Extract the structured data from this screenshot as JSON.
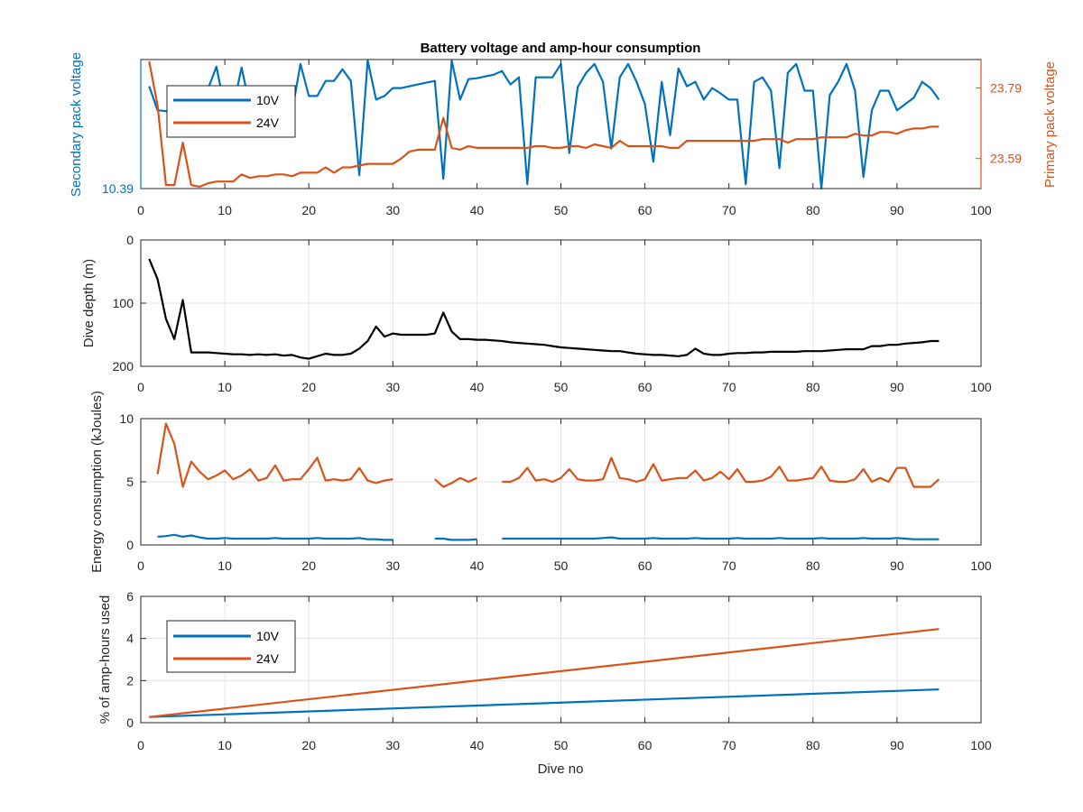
{
  "colors": {
    "v10": "#0072BD",
    "v24": "#D95319",
    "depth": "#000000",
    "axis": "#262626",
    "grid": "#e3e3e3"
  },
  "chart_data": [
    {
      "type": "line",
      "title": "Battery voltage and amp-hour consumption",
      "xlabel": "",
      "ylabel_left": "Secondary pack voltage",
      "ylabel_right": "Primary pack voltage",
      "xlim": [
        0,
        100
      ],
      "xticks": [
        "0",
        "10",
        "20",
        "30",
        "40",
        "50",
        "60",
        "70",
        "80",
        "90",
        "100"
      ],
      "yticks_left": [
        "10.39"
      ],
      "yticks_right": [
        "23.79",
        "23.59"
      ],
      "grid": false,
      "legend": {
        "placement": "top-left",
        "entries": [
          "10V",
          "24V"
        ]
      },
      "series": [
        {
          "name": "10V",
          "axis": "left",
          "x": [
            1,
            2,
            3,
            4,
            5,
            6,
            7,
            8,
            9,
            10,
            11,
            12,
            13,
            14,
            15,
            16,
            17,
            18,
            19,
            20,
            21,
            22,
            23,
            24,
            25,
            26,
            27,
            28,
            29,
            30,
            31,
            32,
            33,
            34,
            35,
            36,
            37,
            38,
            39,
            40,
            41,
            42,
            43,
            44,
            45,
            46,
            47,
            48,
            49,
            50,
            51,
            52,
            53,
            54,
            55,
            56,
            57,
            58,
            59,
            60,
            61,
            62,
            63,
            64,
            65,
            66,
            67,
            68,
            69,
            70,
            71,
            72,
            73,
            74,
            75,
            76,
            77,
            78,
            79,
            80,
            81,
            82,
            83,
            84,
            85,
            86,
            87,
            88,
            89,
            90,
            91,
            92,
            93,
            94,
            95
          ],
          "y": [
            10.505,
            10.478,
            10.477,
            10.472,
            10.488,
            10.478,
            10.472,
            10.502,
            10.527,
            10.48,
            10.482,
            10.526,
            10.482,
            10.482,
            10.479,
            10.485,
            10.487,
            10.476,
            10.53,
            10.494,
            10.494,
            10.511,
            10.511,
            10.524,
            10.511,
            10.405,
            10.534,
            10.49,
            10.494,
            10.503,
            10.503,
            10.505,
            10.507,
            10.509,
            10.511,
            10.401,
            10.534,
            10.49,
            10.513,
            10.514,
            10.516,
            10.518,
            10.522,
            10.507,
            10.515,
            10.395,
            10.515,
            10.515,
            10.515,
            10.53,
            10.43,
            10.504,
            10.52,
            10.53,
            10.51,
            10.435,
            10.515,
            10.53,
            10.51,
            10.485,
            10.42,
            10.51,
            10.45,
            10.525,
            10.505,
            10.51,
            10.49,
            10.503,
            10.497,
            10.49,
            10.49,
            10.395,
            10.51,
            10.515,
            10.5,
            10.413,
            10.52,
            10.53,
            10.5,
            10.5,
            10.39,
            10.495,
            10.51,
            10.53,
            10.5,
            10.403,
            10.478,
            10.5,
            10.5,
            10.478,
            10.485,
            10.492,
            10.51,
            10.503,
            10.49
          ]
        },
        {
          "name": "24V",
          "axis": "right",
          "x": [
            1,
            2,
            3,
            4,
            5,
            6,
            7,
            8,
            9,
            10,
            11,
            12,
            13,
            14,
            15,
            16,
            17,
            18,
            19,
            20,
            21,
            22,
            23,
            24,
            25,
            26,
            27,
            28,
            29,
            30,
            31,
            32,
            33,
            34,
            35,
            36,
            37,
            38,
            39,
            40,
            41,
            42,
            43,
            44,
            45,
            46,
            47,
            48,
            49,
            50,
            51,
            52,
            53,
            54,
            55,
            56,
            57,
            58,
            59,
            60,
            61,
            62,
            63,
            64,
            65,
            66,
            67,
            68,
            69,
            70,
            71,
            72,
            73,
            74,
            75,
            76,
            77,
            78,
            79,
            80,
            81,
            82,
            83,
            84,
            85,
            86,
            87,
            88,
            89,
            90,
            91,
            92,
            93,
            94,
            95
          ],
          "y": [
            23.865,
            23.74,
            23.515,
            23.515,
            23.635,
            23.515,
            23.51,
            23.52,
            23.525,
            23.525,
            23.525,
            23.545,
            23.535,
            23.54,
            23.54,
            23.545,
            23.545,
            23.54,
            23.55,
            23.55,
            23.55,
            23.565,
            23.55,
            23.565,
            23.565,
            23.57,
            23.575,
            23.575,
            23.575,
            23.575,
            23.59,
            23.61,
            23.615,
            23.615,
            23.615,
            23.705,
            23.62,
            23.615,
            23.625,
            23.62,
            23.62,
            23.62,
            23.62,
            23.62,
            23.62,
            23.62,
            23.625,
            23.625,
            23.62,
            23.62,
            23.625,
            23.625,
            23.62,
            23.63,
            23.625,
            23.62,
            23.64,
            23.625,
            23.625,
            23.625,
            23.625,
            23.625,
            23.62,
            23.62,
            23.64,
            23.64,
            23.64,
            23.64,
            23.64,
            23.64,
            23.64,
            23.64,
            23.64,
            23.645,
            23.645,
            23.645,
            23.635,
            23.645,
            23.645,
            23.645,
            23.65,
            23.65,
            23.65,
            23.65,
            23.66,
            23.655,
            23.655,
            23.665,
            23.665,
            23.66,
            23.67,
            23.675,
            23.675,
            23.68,
            23.68
          ]
        }
      ]
    },
    {
      "type": "line",
      "title": "",
      "xlabel": "",
      "ylabel": "Dive depth (m)",
      "xlim": [
        0,
        100
      ],
      "ylim": [
        0,
        200
      ],
      "y_reversed": true,
      "xticks": [
        "0",
        "10",
        "20",
        "30",
        "40",
        "50",
        "60",
        "70",
        "80",
        "90",
        "100"
      ],
      "yticks": [
        "0",
        "100",
        "200"
      ],
      "grid": true,
      "series": [
        {
          "axis": "left",
          "x": [
            1,
            2,
            3,
            4,
            5,
            6,
            7,
            8,
            9,
            10,
            11,
            12,
            13,
            14,
            15,
            16,
            17,
            18,
            19,
            20,
            21,
            22,
            23,
            24,
            25,
            26,
            27,
            28,
            29,
            30,
            31,
            32,
            33,
            34,
            35,
            36,
            37,
            38,
            39,
            40,
            41,
            42,
            43,
            44,
            45,
            46,
            47,
            48,
            49,
            50,
            51,
            52,
            53,
            54,
            55,
            56,
            57,
            58,
            59,
            60,
            61,
            62,
            63,
            64,
            65,
            66,
            67,
            68,
            69,
            70,
            71,
            72,
            73,
            74,
            75,
            76,
            77,
            78,
            79,
            80,
            81,
            82,
            83,
            84,
            85,
            86,
            87,
            88,
            89,
            90,
            91,
            92,
            93,
            94,
            95
          ],
          "y": [
            30,
            62,
            125,
            157,
            95,
            178,
            178,
            178,
            179,
            180,
            181,
            181,
            182,
            181,
            182,
            181,
            183,
            182,
            186,
            188,
            184,
            180,
            182,
            182,
            180,
            172,
            160,
            137,
            153,
            148,
            150,
            150,
            150,
            150,
            148,
            115,
            145,
            157,
            157,
            158,
            158,
            159,
            160,
            162,
            163,
            164,
            165,
            166,
            168,
            170,
            171,
            172,
            173,
            174,
            175,
            176,
            176,
            178,
            180,
            181,
            182,
            182,
            183,
            184,
            182,
            172,
            180,
            182,
            182,
            180,
            179,
            179,
            178,
            178,
            177,
            177,
            177,
            177,
            176,
            176,
            176,
            175,
            174,
            173,
            173,
            173,
            168,
            168,
            166,
            166,
            164,
            163,
            162,
            160,
            160
          ]
        }
      ]
    },
    {
      "type": "line",
      "title": "",
      "xlabel": "",
      "ylabel": "Energy consumption (kJoules)",
      "xlim": [
        0,
        100
      ],
      "ylim": [
        0,
        10
      ],
      "xticks": [
        "0",
        "10",
        "20",
        "30",
        "40",
        "50",
        "60",
        "70",
        "80",
        "90",
        "100"
      ],
      "yticks": [
        "0",
        "5",
        "10"
      ],
      "grid": true,
      "series": [
        {
          "name": "24V",
          "axis": "left",
          "x": [
            2,
            3,
            4,
            5,
            6,
            7,
            8,
            9,
            10,
            11,
            12,
            13,
            14,
            15,
            16,
            17,
            18,
            19,
            20,
            21,
            22,
            23,
            24,
            25,
            26,
            27,
            28,
            29,
            30,
            null,
            35,
            36,
            37,
            38,
            39,
            40,
            null,
            43,
            44,
            45,
            46,
            47,
            48,
            49,
            50,
            51,
            52,
            53,
            54,
            55,
            56,
            57,
            58,
            59,
            60,
            61,
            62,
            63,
            64,
            65,
            66,
            67,
            68,
            69,
            70,
            71,
            72,
            73,
            74,
            75,
            76,
            77,
            78,
            79,
            80,
            81,
            82,
            83,
            84,
            85,
            86,
            87,
            88,
            89,
            90,
            91,
            92,
            93,
            94,
            95
          ],
          "y": [
            5.6,
            9.6,
            8.0,
            4.6,
            6.6,
            5.8,
            5.2,
            5.5,
            5.9,
            5.2,
            5.5,
            6.0,
            5.1,
            5.3,
            6.3,
            5.1,
            5.2,
            5.2,
            6.0,
            6.9,
            5.1,
            5.2,
            5.1,
            5.2,
            6.1,
            5.1,
            4.9,
            5.1,
            5.2,
            null,
            5.2,
            4.6,
            4.9,
            5.3,
            5.0,
            5.3,
            null,
            5.0,
            5.0,
            5.3,
            6.1,
            5.1,
            5.2,
            5.0,
            5.3,
            6.0,
            5.2,
            5.1,
            5.1,
            5.2,
            6.9,
            5.3,
            5.2,
            5.0,
            5.2,
            6.4,
            5.1,
            5.2,
            5.3,
            5.3,
            5.9,
            5.1,
            5.3,
            5.8,
            5.2,
            6.0,
            5.0,
            5.0,
            5.1,
            5.4,
            6.2,
            5.1,
            5.1,
            5.2,
            5.3,
            6.2,
            5.1,
            5.0,
            5.0,
            5.2,
            6.0,
            5.0,
            5.3,
            5.0,
            6.1,
            6.1,
            4.6,
            4.6,
            4.6,
            5.2
          ]
        },
        {
          "name": "10V",
          "axis": "left",
          "x": [
            2,
            3,
            4,
            5,
            6,
            7,
            8,
            9,
            10,
            11,
            12,
            13,
            14,
            15,
            16,
            17,
            18,
            19,
            20,
            21,
            22,
            23,
            24,
            25,
            26,
            27,
            28,
            29,
            30,
            null,
            35,
            36,
            37,
            38,
            39,
            40,
            null,
            43,
            44,
            45,
            46,
            47,
            48,
            49,
            50,
            51,
            52,
            53,
            54,
            55,
            56,
            57,
            58,
            59,
            60,
            61,
            62,
            63,
            64,
            65,
            66,
            67,
            68,
            69,
            70,
            71,
            72,
            73,
            74,
            75,
            76,
            77,
            78,
            79,
            80,
            81,
            82,
            83,
            84,
            85,
            86,
            87,
            88,
            89,
            90,
            91,
            92,
            93,
            94,
            95
          ],
          "y": [
            0.65,
            0.7,
            0.8,
            0.65,
            0.75,
            0.6,
            0.5,
            0.5,
            0.55,
            0.5,
            0.5,
            0.5,
            0.5,
            0.5,
            0.55,
            0.5,
            0.5,
            0.5,
            0.5,
            0.55,
            0.5,
            0.5,
            0.5,
            0.5,
            0.55,
            0.45,
            0.45,
            0.4,
            0.4,
            null,
            0.5,
            0.5,
            0.4,
            0.4,
            0.4,
            0.45,
            null,
            0.5,
            0.5,
            0.5,
            0.5,
            0.5,
            0.5,
            0.5,
            0.5,
            0.5,
            0.5,
            0.5,
            0.5,
            0.55,
            0.6,
            0.5,
            0.5,
            0.5,
            0.5,
            0.55,
            0.5,
            0.5,
            0.5,
            0.5,
            0.55,
            0.5,
            0.5,
            0.5,
            0.5,
            0.55,
            0.5,
            0.5,
            0.5,
            0.5,
            0.55,
            0.5,
            0.5,
            0.5,
            0.5,
            0.55,
            0.5,
            0.5,
            0.5,
            0.5,
            0.55,
            0.5,
            0.5,
            0.5,
            0.55,
            0.5,
            0.45,
            0.45,
            0.45,
            0.45
          ]
        }
      ]
    },
    {
      "type": "line",
      "title": "",
      "xlabel": "Dive no",
      "ylabel": "% of amp-hours used",
      "xlim": [
        0,
        100
      ],
      "ylim": [
        0,
        6
      ],
      "xticks": [
        "0",
        "10",
        "20",
        "30",
        "40",
        "50",
        "60",
        "70",
        "80",
        "90",
        "100"
      ],
      "yticks": [
        "0",
        "2",
        "4",
        "6"
      ],
      "grid": true,
      "legend": {
        "placement": "bottom-left",
        "entries": [
          "10V",
          "24V"
        ]
      },
      "series": [
        {
          "name": "10V",
          "axis": "left",
          "x": [
            1,
            95
          ],
          "y": [
            0.27,
            1.58
          ]
        },
        {
          "name": "24V",
          "axis": "left",
          "x": [
            1,
            95
          ],
          "y": [
            0.27,
            4.45
          ]
        }
      ]
    }
  ]
}
